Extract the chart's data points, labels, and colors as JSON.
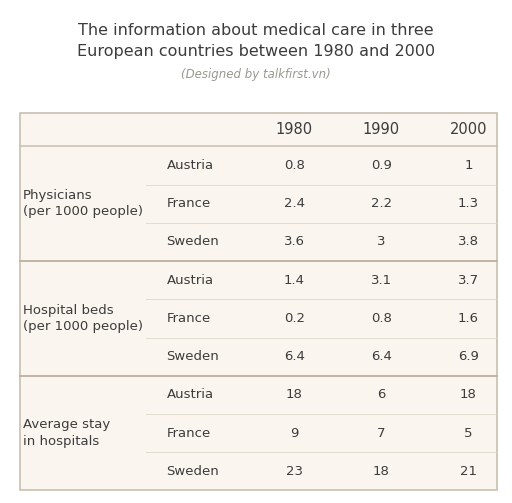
{
  "title": "The information about medical care in three\nEuropean countries between 1980 and 2000",
  "subtitle": "(Designed by talkfirst.vn)",
  "bg_color_outer": "#ffffff",
  "bg_color_table": "#faf5ee",
  "border_color": "#c8bfb0",
  "sep_color": "#c0b5a5",
  "subrow_color": "#ddd5c8",
  "text_color": "#3c3c3c",
  "subtitle_color": "#999990",
  "years": [
    "1980",
    "1990",
    "2000"
  ],
  "sections": [
    {
      "label": "Physicians\n(per 1000 people)",
      "rows": [
        {
          "country": "Austria",
          "values": [
            "0.8",
            "0.9",
            "1"
          ]
        },
        {
          "country": "France",
          "values": [
            "2.4",
            "2.2",
            "1.3"
          ]
        },
        {
          "country": "Sweden",
          "values": [
            "3.6",
            "3",
            "3.8"
          ]
        }
      ]
    },
    {
      "label": "Hospital beds\n(per 1000 people)",
      "rows": [
        {
          "country": "Austria",
          "values": [
            "1.4",
            "3.1",
            "3.7"
          ]
        },
        {
          "country": "France",
          "values": [
            "0.2",
            "0.8",
            "1.6"
          ]
        },
        {
          "country": "Sweden",
          "values": [
            "6.4",
            "6.4",
            "6.9"
          ]
        }
      ]
    },
    {
      "label": "Average stay\nin hospitals",
      "rows": [
        {
          "country": "Austria",
          "values": [
            "18",
            "6",
            "18"
          ]
        },
        {
          "country": "France",
          "values": [
            "9",
            "7",
            "5"
          ]
        },
        {
          "country": "Sweden",
          "values": [
            "23",
            "18",
            "21"
          ]
        }
      ]
    }
  ],
  "title_fontsize": 11.5,
  "subtitle_fontsize": 8.5,
  "header_fontsize": 10.5,
  "cell_fontsize": 9.5,
  "label_fontsize": 9.5
}
